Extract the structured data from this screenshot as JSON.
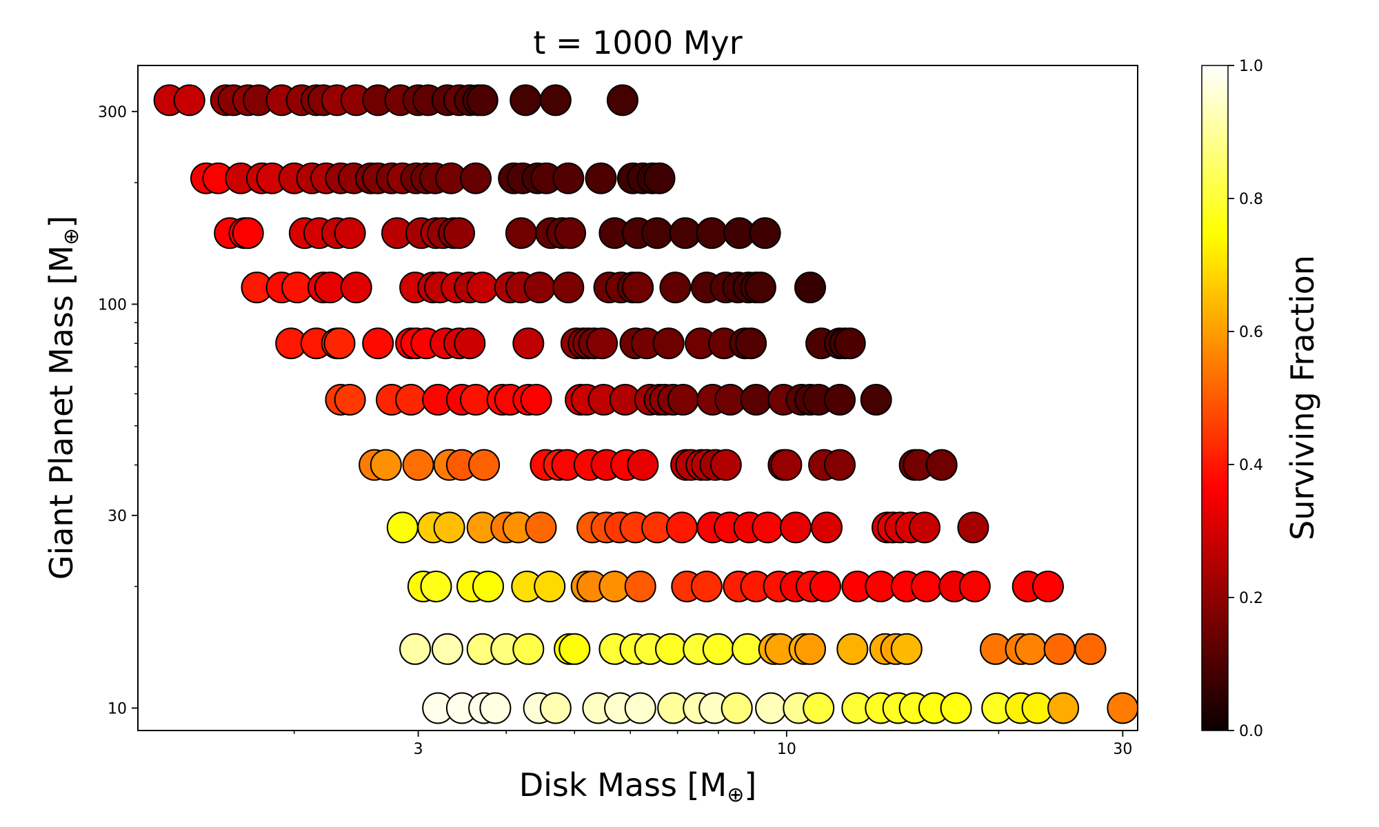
{
  "chart_data": {
    "type": "scatter",
    "title": "t = 1000 Myr",
    "xlabel": "Disk Mass [M",
    "ylabel": "Giant Planet Mass [M",
    "unit_symbol": "⊕",
    "unit_close": "]",
    "xscale": "log",
    "yscale": "log",
    "xlim": [
      1.2,
      31.5
    ],
    "ylim": [
      8.8,
      390
    ],
    "xticks": [
      3,
      10,
      30
    ],
    "xtick_labels": [
      "3",
      "10",
      "30"
    ],
    "yticks": [
      10,
      30,
      100,
      300
    ],
    "ytick_labels": [
      "10",
      "30",
      "100",
      "300"
    ],
    "colorbar": {
      "label": "Surviving Fraction",
      "colormap": "hot",
      "range": [
        0.0,
        1.0
      ],
      "ticks": [
        0.0,
        0.2,
        0.4,
        0.6,
        0.8,
        1.0
      ],
      "tick_labels": [
        "0.0",
        "0.2",
        "0.4",
        "0.6",
        "0.8",
        "1.0"
      ]
    },
    "marker_edge_color": "#000000",
    "rows": [
      {
        "y": 320,
        "x": [
          1.33,
          1.42,
          1.6,
          1.64,
          1.72,
          1.78,
          1.92,
          2.05,
          2.15,
          2.2,
          2.3,
          2.45,
          2.63,
          2.83,
          3.0,
          3.1,
          3.3,
          3.43,
          3.55,
          3.65,
          3.7,
          4.26,
          4.7,
          5.85
        ],
        "c": [
          0.25,
          0.25,
          0.18,
          0.16,
          0.17,
          0.15,
          0.19,
          0.17,
          0.15,
          0.15,
          0.18,
          0.17,
          0.12,
          0.13,
          0.11,
          0.1,
          0.09,
          0.11,
          0.08,
          0.07,
          0.07,
          0.06,
          0.06,
          0.06
        ]
      },
      {
        "y": 205,
        "x": [
          1.5,
          1.56,
          1.68,
          1.8,
          1.86,
          2.0,
          2.12,
          2.22,
          2.33,
          2.43,
          2.57,
          2.63,
          2.75,
          2.85,
          2.98,
          3.08,
          3.17,
          3.34,
          3.62,
          4.1,
          4.22,
          4.43,
          4.56,
          4.9,
          5.45,
          6.05,
          6.25,
          6.45,
          6.6
        ],
        "c": [
          0.32,
          0.33,
          0.26,
          0.26,
          0.27,
          0.24,
          0.22,
          0.22,
          0.18,
          0.17,
          0.14,
          0.15,
          0.14,
          0.17,
          0.12,
          0.12,
          0.12,
          0.13,
          0.11,
          0.07,
          0.07,
          0.06,
          0.08,
          0.08,
          0.07,
          0.05,
          0.05,
          0.04,
          0.05
        ]
      },
      {
        "y": 150,
        "x": [
          1.62,
          1.7,
          1.72,
          2.07,
          2.17,
          2.3,
          2.4,
          2.8,
          3.03,
          3.18,
          3.25,
          3.37,
          3.43,
          4.2,
          4.63,
          4.8,
          4.93,
          5.7,
          6.15,
          6.55,
          7.18,
          7.83,
          8.57,
          9.32
        ],
        "c": [
          0.35,
          0.36,
          0.33,
          0.28,
          0.27,
          0.25,
          0.26,
          0.23,
          0.2,
          0.21,
          0.18,
          0.15,
          0.17,
          0.12,
          0.1,
          0.1,
          0.11,
          0.07,
          0.07,
          0.06,
          0.06,
          0.06,
          0.05,
          0.05
        ]
      },
      {
        "y": 110,
        "x": [
          1.77,
          1.92,
          2.02,
          2.2,
          2.25,
          2.45,
          2.97,
          3.15,
          3.22,
          3.4,
          3.55,
          3.7,
          4.05,
          4.2,
          4.46,
          4.9,
          5.6,
          5.82,
          6.05,
          6.15,
          6.95,
          7.7,
          8.2,
          8.53,
          8.83,
          9.05,
          9.18,
          10.8
        ],
        "c": [
          0.4,
          0.38,
          0.39,
          0.3,
          0.3,
          0.29,
          0.27,
          0.24,
          0.24,
          0.25,
          0.22,
          0.25,
          0.21,
          0.19,
          0.16,
          0.14,
          0.12,
          0.12,
          0.1,
          0.12,
          0.1,
          0.08,
          0.08,
          0.06,
          0.06,
          0.06,
          0.06,
          0.04
        ]
      },
      {
        "y": 80,
        "x": [
          1.98,
          2.15,
          2.3,
          2.32,
          2.63,
          2.93,
          2.98,
          3.08,
          3.28,
          3.43,
          3.55,
          4.3,
          5.03,
          5.15,
          5.23,
          5.33,
          5.47,
          6.1,
          6.33,
          6.8,
          7.55,
          8.15,
          8.73,
          8.9,
          11.2,
          11.9,
          12.1,
          12.3
        ],
        "c": [
          0.4,
          0.4,
          0.42,
          0.42,
          0.38,
          0.34,
          0.36,
          0.34,
          0.3,
          0.28,
          0.26,
          0.24,
          0.17,
          0.16,
          0.15,
          0.13,
          0.15,
          0.12,
          0.13,
          0.12,
          0.12,
          0.11,
          0.08,
          0.08,
          0.07,
          0.07,
          0.06,
          0.07
        ]
      },
      {
        "y": 58,
        "x": [
          2.33,
          2.4,
          2.75,
          2.93,
          3.2,
          3.46,
          3.62,
          3.95,
          4.05,
          4.3,
          4.41,
          5.1,
          5.2,
          5.5,
          5.9,
          6.4,
          6.6,
          6.72,
          6.9,
          7.13,
          7.85,
          8.32,
          9.05,
          9.9,
          10.5,
          10.8,
          11.1,
          11.9,
          13.4
        ],
        "c": [
          0.45,
          0.45,
          0.42,
          0.42,
          0.37,
          0.36,
          0.39,
          0.38,
          0.37,
          0.36,
          0.33,
          0.27,
          0.26,
          0.24,
          0.22,
          0.2,
          0.17,
          0.17,
          0.15,
          0.14,
          0.14,
          0.12,
          0.09,
          0.12,
          0.09,
          0.07,
          0.07,
          0.07,
          0.06
        ]
      },
      {
        "y": 40,
        "x": [
          2.6,
          2.7,
          3.0,
          3.32,
          3.46,
          3.72,
          4.55,
          4.75,
          4.88,
          5.25,
          5.55,
          5.92,
          6.25,
          7.2,
          7.32,
          7.57,
          7.7,
          7.92,
          8.2,
          9.9,
          9.99,
          11.3,
          11.9,
          15.2,
          15.4,
          16.6
        ],
        "c": [
          0.55,
          0.58,
          0.53,
          0.55,
          0.5,
          0.51,
          0.38,
          0.4,
          0.37,
          0.37,
          0.32,
          0.35,
          0.3,
          0.24,
          0.23,
          0.24,
          0.23,
          0.2,
          0.22,
          0.14,
          0.18,
          0.16,
          0.15,
          0.12,
          0.13,
          0.12
        ]
      },
      {
        "y": 28,
        "x": [
          2.85,
          3.15,
          3.32,
          3.7,
          4.0,
          4.16,
          4.48,
          5.3,
          5.55,
          5.8,
          6.1,
          6.55,
          7.1,
          7.85,
          8.3,
          8.85,
          9.4,
          10.3,
          11.4,
          13.9,
          14.15,
          14.5,
          15.0,
          15.7,
          18.4
        ],
        "c": [
          0.75,
          0.67,
          0.65,
          0.6,
          0.55,
          0.58,
          0.52,
          0.5,
          0.48,
          0.45,
          0.45,
          0.44,
          0.4,
          0.36,
          0.33,
          0.32,
          0.35,
          0.3,
          0.28,
          0.28,
          0.3,
          0.28,
          0.28,
          0.25,
          0.2
        ]
      },
      {
        "y": 20,
        "x": [
          3.05,
          3.18,
          3.58,
          3.77,
          4.28,
          4.61,
          5.2,
          5.3,
          5.7,
          6.2,
          7.22,
          7.7,
          8.55,
          9.05,
          9.75,
          10.3,
          10.85,
          11.35,
          12.6,
          13.6,
          14.8,
          15.8,
          17.3,
          18.5,
          22.0,
          23.5
        ],
        "c": [
          0.74,
          0.77,
          0.74,
          0.75,
          0.7,
          0.69,
          0.58,
          0.57,
          0.58,
          0.5,
          0.44,
          0.43,
          0.41,
          0.4,
          0.39,
          0.36,
          0.38,
          0.36,
          0.35,
          0.36,
          0.35,
          0.33,
          0.31,
          0.33,
          0.35,
          0.35
        ]
      },
      {
        "y": 14,
        "x": [
          2.97,
          3.3,
          3.7,
          4.0,
          4.3,
          4.92,
          5.0,
          5.7,
          6.1,
          6.4,
          6.85,
          7.5,
          8.0,
          8.8,
          9.6,
          9.8,
          10.6,
          10.8,
          12.4,
          13.8,
          14.3,
          14.8,
          19.8,
          21.5,
          22.2,
          24.4,
          27.0
        ],
        "c": [
          0.91,
          0.92,
          0.87,
          0.87,
          0.82,
          0.75,
          0.75,
          0.8,
          0.79,
          0.8,
          0.78,
          0.8,
          0.78,
          0.79,
          0.62,
          0.61,
          0.63,
          0.6,
          0.63,
          0.62,
          0.61,
          0.64,
          0.54,
          0.55,
          0.56,
          0.52,
          0.52
        ]
      },
      {
        "y": 10,
        "x": [
          3.2,
          3.46,
          3.72,
          3.86,
          4.45,
          4.7,
          5.4,
          5.8,
          6.2,
          6.9,
          7.5,
          7.9,
          8.5,
          9.5,
          10.4,
          11.1,
          12.6,
          13.6,
          14.4,
          15.2,
          16.2,
          17.4,
          19.9,
          21.5,
          22.7,
          24.7,
          30.0
        ],
        "c": [
          0.98,
          0.98,
          0.98,
          0.97,
          0.96,
          0.92,
          0.94,
          0.95,
          0.95,
          0.9,
          0.92,
          0.94,
          0.87,
          0.93,
          0.89,
          0.81,
          0.8,
          0.78,
          0.78,
          0.77,
          0.76,
          0.76,
          0.78,
          0.73,
          0.73,
          0.62,
          0.55
        ]
      }
    ]
  }
}
